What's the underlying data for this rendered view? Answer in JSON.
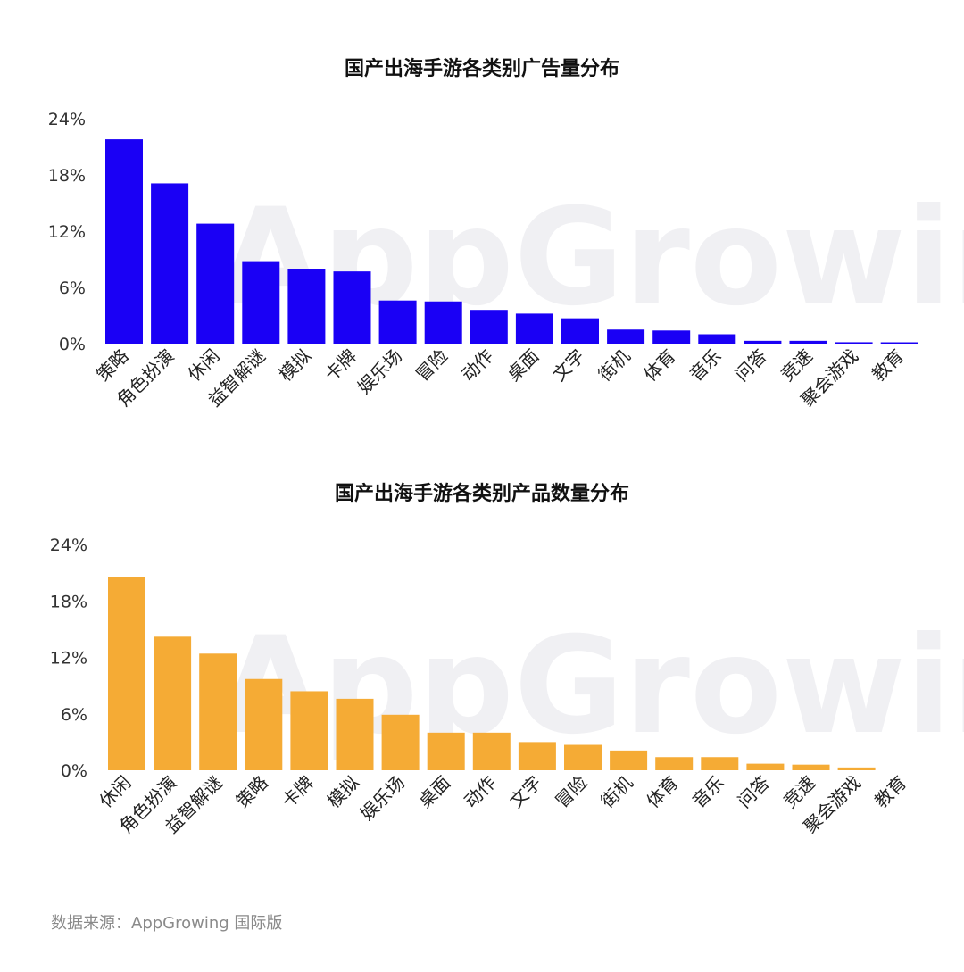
{
  "watermark": "AppGrowing",
  "source": "数据来源：AppGrowing 国际版",
  "chart_data": [
    {
      "type": "bar",
      "title": "国产出海手游各类别广告量分布",
      "color": "#1a00f5",
      "ylim": [
        0,
        24
      ],
      "yticks": [
        "0%",
        "6%",
        "12%",
        "18%",
        "24%"
      ],
      "grid": false,
      "categories": [
        "策略",
        "角色扮演",
        "休闲",
        "益智解谜",
        "模拟",
        "卡牌",
        "娱乐场",
        "冒险",
        "动作",
        "桌面",
        "文字",
        "街机",
        "体育",
        "音乐",
        "问答",
        "竞速",
        "聚会游戏",
        "教育"
      ],
      "values": [
        21.8,
        17.1,
        12.8,
        8.8,
        8.0,
        7.7,
        4.6,
        4.5,
        3.6,
        3.2,
        2.7,
        1.5,
        1.4,
        1.0,
        0.3,
        0.3,
        0.15,
        0.1
      ]
    },
    {
      "type": "bar",
      "title": "国产出海手游各类别产品数量分布",
      "color": "#f5ab35",
      "ylim": [
        0,
        24
      ],
      "yticks": [
        "0%",
        "6%",
        "12%",
        "18%",
        "24%"
      ],
      "grid": false,
      "categories": [
        "休闲",
        "角色扮演",
        "益智解谜",
        "策略",
        "卡牌",
        "模拟",
        "娱乐场",
        "桌面",
        "动作",
        "文字",
        "冒险",
        "街机",
        "体育",
        "音乐",
        "问答",
        "竞速",
        "聚会游戏",
        "教育"
      ],
      "values": [
        20.5,
        14.2,
        12.4,
        9.7,
        8.4,
        7.6,
        5.9,
        4.0,
        4.0,
        3.0,
        2.7,
        2.1,
        1.4,
        1.4,
        0.7,
        0.6,
        0.3,
        0.0
      ]
    }
  ]
}
